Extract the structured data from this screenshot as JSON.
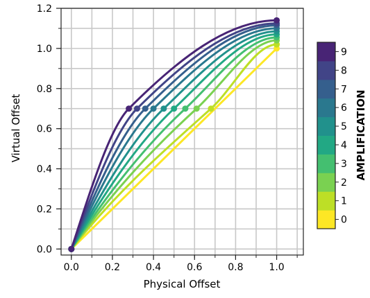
{
  "chart_data": {
    "type": "line",
    "title": "",
    "xlabel": "Physical Offset",
    "ylabel": "Virtual Offset",
    "xlim": [
      -0.05,
      1.13
    ],
    "ylim": [
      -0.03,
      1.2
    ],
    "x_ticks": [
      0.0,
      0.2,
      0.4,
      0.6,
      0.8,
      1.0
    ],
    "y_ticks": [
      0.0,
      0.2,
      0.4,
      0.6,
      0.8,
      1.0,
      1.2
    ],
    "x_tick_labels": [
      "0.0",
      "0.2",
      "0.4",
      "0.6",
      "0.8",
      "1.0"
    ],
    "y_tick_labels": [
      "0.0",
      "0.2",
      "0.4",
      "0.6",
      "0.8",
      "1.0",
      "1.2"
    ],
    "grid": true,
    "colorbar": {
      "label": "AMPLIFICATION",
      "ticks": [
        "0",
        "1",
        "2",
        "3",
        "4",
        "5",
        "6",
        "7",
        "8",
        "9"
      ],
      "colors": [
        "#fde725",
        "#bddf26",
        "#7ad151",
        "#44bf70",
        "#22a884",
        "#21918c",
        "#2a788e",
        "#355f8d",
        "#414487",
        "#482475"
      ]
    },
    "series": [
      {
        "amplification": 0,
        "points": [
          [
            0,
            0
          ],
          [
            1.0,
            1.0
          ]
        ]
      },
      {
        "amplification": 1,
        "points": [
          [
            0,
            0
          ],
          [
            0.68,
            0.7
          ],
          [
            1.0,
            1.02
          ]
        ]
      },
      {
        "amplification": 2,
        "points": [
          [
            0,
            0
          ],
          [
            0.61,
            0.7
          ],
          [
            1.0,
            1.04
          ]
        ]
      },
      {
        "amplification": 3,
        "points": [
          [
            0,
            0
          ],
          [
            0.555,
            0.7
          ],
          [
            1.0,
            1.055
          ]
        ]
      },
      {
        "amplification": 4,
        "points": [
          [
            0,
            0
          ],
          [
            0.5,
            0.7
          ],
          [
            1.0,
            1.07
          ]
        ]
      },
      {
        "amplification": 5,
        "points": [
          [
            0,
            0
          ],
          [
            0.45,
            0.7
          ],
          [
            1.0,
            1.085
          ]
        ]
      },
      {
        "amplification": 6,
        "points": [
          [
            0,
            0
          ],
          [
            0.4,
            0.7
          ],
          [
            1.0,
            1.1
          ]
        ]
      },
      {
        "amplification": 7,
        "points": [
          [
            0,
            0
          ],
          [
            0.36,
            0.7
          ],
          [
            1.0,
            1.115
          ]
        ]
      },
      {
        "amplification": 8,
        "points": [
          [
            0,
            0
          ],
          [
            0.32,
            0.7
          ],
          [
            1.0,
            1.125
          ]
        ]
      },
      {
        "amplification": 9,
        "points": [
          [
            0,
            0
          ],
          [
            0.28,
            0.7
          ],
          [
            1.0,
            1.14
          ]
        ]
      }
    ]
  }
}
